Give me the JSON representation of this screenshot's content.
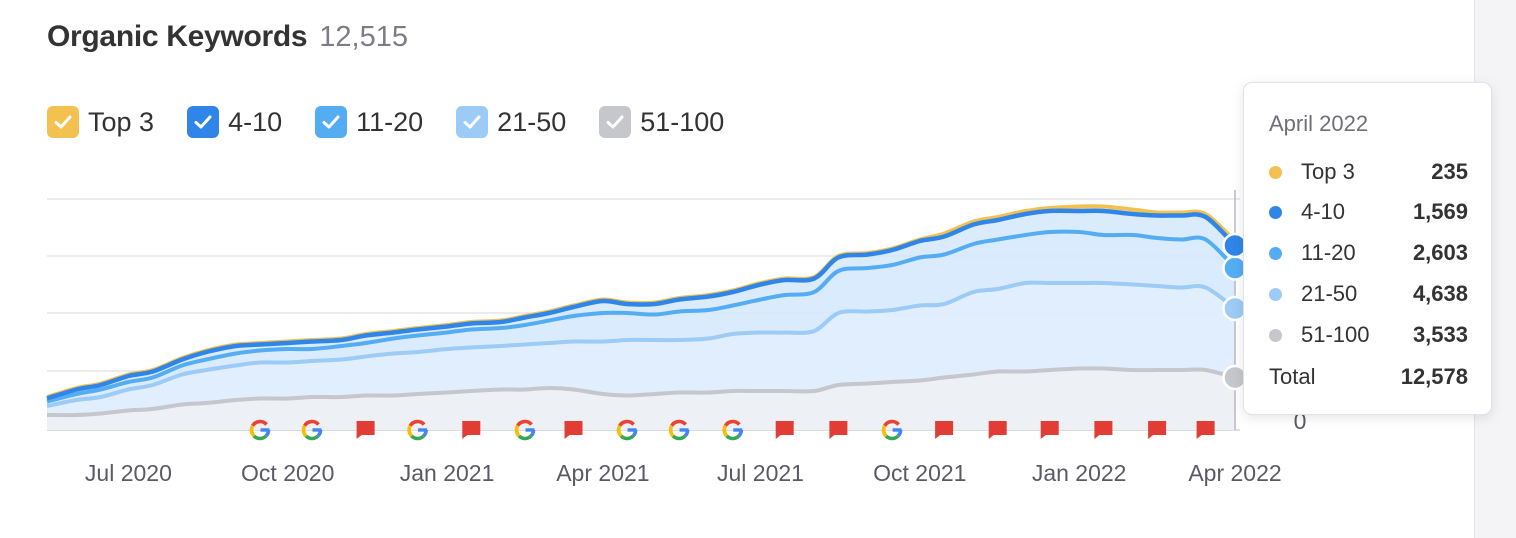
{
  "header": {
    "title": "Organic Keywords",
    "total": "12,515"
  },
  "legend": [
    {
      "label": "Top 3",
      "color": "#f3c150"
    },
    {
      "label": "4-10",
      "color": "#2f86e8"
    },
    {
      "label": "11-20",
      "color": "#54adf3"
    },
    {
      "label": "21-50",
      "color": "#9ccbf6"
    },
    {
      "label": "51-100",
      "color": "#c6c7cc"
    }
  ],
  "tooltip": {
    "title": "April 2022",
    "rows": [
      {
        "name": "Top 3",
        "value": "235",
        "color": "#f3c150"
      },
      {
        "name": "4-10",
        "value": "1,569",
        "color": "#2f86e8"
      },
      {
        "name": "11-20",
        "value": "2,603",
        "color": "#54adf3"
      },
      {
        "name": "21-50",
        "value": "4,638",
        "color": "#9ccbf6"
      },
      {
        "name": "51-100",
        "value": "3,533",
        "color": "#c6c7cc"
      }
    ],
    "total_label": "Total",
    "total_value": "12,578"
  },
  "chart_data": {
    "type": "area",
    "stacked": true,
    "xlim": [
      "2020-05-15",
      "2022-04-01"
    ],
    "ylim": [
      0,
      16000
    ],
    "ytick_labels": [
      "0"
    ],
    "xtick_labels": [
      "Jul 2020",
      "Oct 2020",
      "Jan 2021",
      "Apr 2021",
      "Jul 2021",
      "Oct 2021",
      "Jan 2022",
      "Apr 2022"
    ],
    "xticks": [
      "2020-07-01",
      "2020-10-01",
      "2021-01-01",
      "2021-04-01",
      "2021-07-01",
      "2021-10-01",
      "2022-01-01",
      "2022-04-01"
    ],
    "grid": true,
    "x": [
      "2020-05-15",
      "2020-06-01",
      "2020-06-15",
      "2020-07-01",
      "2020-07-15",
      "2020-08-01",
      "2020-08-15",
      "2020-09-01",
      "2020-09-15",
      "2020-10-01",
      "2020-10-15",
      "2020-11-01",
      "2020-11-15",
      "2020-12-01",
      "2020-12-15",
      "2021-01-01",
      "2021-01-15",
      "2021-02-01",
      "2021-02-15",
      "2021-03-01",
      "2021-03-15",
      "2021-04-01",
      "2021-04-15",
      "2021-05-01",
      "2021-05-15",
      "2021-06-01",
      "2021-06-15",
      "2021-07-01",
      "2021-07-15",
      "2021-08-01",
      "2021-08-15",
      "2021-09-01",
      "2021-09-15",
      "2021-10-01",
      "2021-10-15",
      "2021-11-01",
      "2021-11-15",
      "2021-12-01",
      "2021-12-15",
      "2022-01-01",
      "2022-01-15",
      "2022-02-01",
      "2022-02-15",
      "2022-03-01",
      "2022-03-15",
      "2022-04-01"
    ],
    "series": [
      {
        "name": "51-100",
        "color": "#c6c7cc",
        "cumulative_values": [
          1000,
          1000,
          1100,
          1300,
          1400,
          1700,
          1800,
          2000,
          2100,
          2100,
          2200,
          2200,
          2300,
          2300,
          2400,
          2500,
          2600,
          2700,
          2700,
          2800,
          2700,
          2400,
          2300,
          2400,
          2500,
          2500,
          2600,
          2600,
          2600,
          2600,
          3000,
          3100,
          3200,
          3300,
          3500,
          3700,
          3900,
          3900,
          4000,
          4100,
          4100,
          4000,
          4000,
          4000,
          4000,
          3500
        ]
      },
      {
        "name": "21-50",
        "color": "#9ccbf6",
        "cumulative_values": [
          1600,
          2000,
          2200,
          2700,
          3000,
          3700,
          4000,
          4300,
          4500,
          4500,
          4600,
          4700,
          4900,
          5100,
          5200,
          5400,
          5500,
          5600,
          5700,
          5800,
          5900,
          5900,
          6000,
          6000,
          6000,
          6100,
          6400,
          6500,
          6500,
          6600,
          7800,
          7900,
          8000,
          8300,
          8400,
          9200,
          9400,
          9800,
          9800,
          9800,
          9800,
          9700,
          9600,
          9500,
          9500,
          8100
        ]
      },
      {
        "name": "11-20",
        "color": "#54adf3",
        "cumulative_values": [
          1900,
          2400,
          2700,
          3200,
          3500,
          4300,
          4700,
          5100,
          5300,
          5400,
          5400,
          5600,
          5800,
          6100,
          6300,
          6500,
          6700,
          6800,
          7000,
          7300,
          7600,
          7800,
          7800,
          7700,
          7900,
          8000,
          8300,
          8700,
          9000,
          9200,
          10600,
          10800,
          11000,
          11500,
          11700,
          12400,
          12700,
          13000,
          13200,
          13200,
          13000,
          13000,
          12800,
          12700,
          12700,
          10800
        ]
      },
      {
        "name": "4-10",
        "color": "#2f86e8",
        "cumulative_values": [
          2100,
          2700,
          3000,
          3600,
          3900,
          4700,
          5200,
          5600,
          5700,
          5800,
          5900,
          6000,
          6300,
          6500,
          6700,
          6900,
          7100,
          7200,
          7500,
          7800,
          8200,
          8600,
          8400,
          8400,
          8700,
          8900,
          9200,
          9700,
          10000,
          10100,
          11500,
          11700,
          12000,
          12600,
          12900,
          13700,
          14000,
          14400,
          14600,
          14600,
          14600,
          14400,
          14300,
          14300,
          14200,
          12300
        ]
      },
      {
        "name": "Top 3",
        "color": "#f3c150",
        "cumulative_values": [
          2200,
          2800,
          3100,
          3700,
          4000,
          4800,
          5300,
          5700,
          5800,
          5900,
          6000,
          6100,
          6400,
          6600,
          6800,
          7000,
          7200,
          7300,
          7600,
          7900,
          8300,
          8700,
          8500,
          8500,
          8800,
          9000,
          9300,
          9800,
          10100,
          10200,
          11600,
          11800,
          12100,
          12700,
          13100,
          13900,
          14200,
          14600,
          14800,
          14900,
          14900,
          14700,
          14500,
          14500,
          14400,
          12600
        ]
      }
    ],
    "events": [
      {
        "date": "2020-09-15",
        "kind": "google"
      },
      {
        "date": "2020-10-15",
        "kind": "google"
      },
      {
        "date": "2020-11-15",
        "kind": "flag"
      },
      {
        "date": "2020-12-15",
        "kind": "google"
      },
      {
        "date": "2021-01-15",
        "kind": "flag"
      },
      {
        "date": "2021-02-15",
        "kind": "google"
      },
      {
        "date": "2021-03-15",
        "kind": "flag"
      },
      {
        "date": "2021-04-15",
        "kind": "google"
      },
      {
        "date": "2021-05-15",
        "kind": "google"
      },
      {
        "date": "2021-06-15",
        "kind": "google"
      },
      {
        "date": "2021-07-15",
        "kind": "flag"
      },
      {
        "date": "2021-08-15",
        "kind": "flag"
      },
      {
        "date": "2021-09-15",
        "kind": "google"
      },
      {
        "date": "2021-10-15",
        "kind": "flag"
      },
      {
        "date": "2021-11-15",
        "kind": "flag"
      },
      {
        "date": "2021-12-15",
        "kind": "flag"
      },
      {
        "date": "2022-01-15",
        "kind": "flag"
      },
      {
        "date": "2022-02-15",
        "kind": "flag"
      },
      {
        "date": "2022-03-15",
        "kind": "flag"
      }
    ]
  }
}
